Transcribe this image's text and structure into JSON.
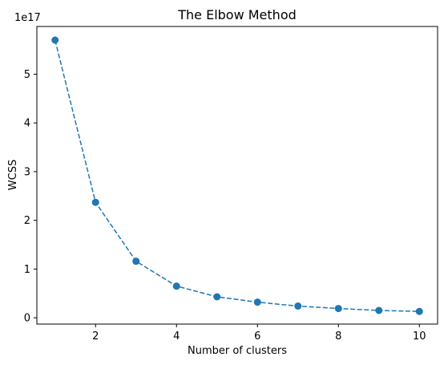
{
  "chart_data": {
    "type": "line",
    "title": "The Elbow Method",
    "xlabel": "Number of clusters",
    "ylabel": "WCSS",
    "y_offset_label": "1e17",
    "x_ticks": [
      2,
      4,
      6,
      8,
      10
    ],
    "y_ticks": [
      0,
      1,
      2,
      3,
      4,
      5
    ],
    "xlim": [
      0.55,
      10.45
    ],
    "ylim": [
      -0.13,
      5.98
    ],
    "grid": false,
    "line_style": "dashed",
    "marker": "circle",
    "color": "#1f77b4",
    "x": [
      1,
      2,
      3,
      4,
      5,
      6,
      7,
      8,
      9,
      10
    ],
    "values": [
      5.7,
      2.37,
      1.16,
      0.65,
      0.43,
      0.32,
      0.24,
      0.19,
      0.15,
      0.13
    ]
  }
}
